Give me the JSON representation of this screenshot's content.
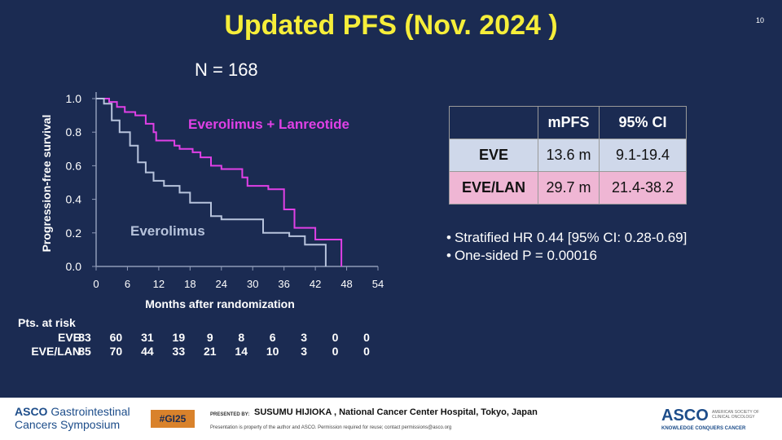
{
  "slide": {
    "title": "Updated PFS (Nov. 2024 )",
    "number": "10",
    "n_label": "N = 168"
  },
  "chart_data": {
    "type": "line",
    "subtype": "kaplan-meier",
    "xlabel": "Months after randomization",
    "ylabel": "Progression-free survival",
    "xlim": [
      0,
      54
    ],
    "ylim": [
      0,
      1.0
    ],
    "xticks": [
      "0",
      "6",
      "12",
      "18",
      "24",
      "30",
      "36",
      "42",
      "48",
      "54"
    ],
    "yticks": [
      "0.0",
      "0.2",
      "0.4",
      "0.6",
      "0.8",
      "1.0"
    ],
    "series": [
      {
        "name": "Everolimus + Lanreotide",
        "color": "#e040e6",
        "points": [
          [
            0,
            1.0
          ],
          [
            2.5,
            1.0
          ],
          [
            2.5,
            0.98
          ],
          [
            4,
            0.98
          ],
          [
            4,
            0.95
          ],
          [
            5.5,
            0.95
          ],
          [
            5.5,
            0.92
          ],
          [
            7.5,
            0.92
          ],
          [
            7.5,
            0.9
          ],
          [
            9.5,
            0.9
          ],
          [
            9.5,
            0.85
          ],
          [
            11,
            0.85
          ],
          [
            11,
            0.8
          ],
          [
            11.5,
            0.8
          ],
          [
            11.5,
            0.75
          ],
          [
            15,
            0.75
          ],
          [
            15,
            0.72
          ],
          [
            16,
            0.72
          ],
          [
            16,
            0.7
          ],
          [
            18.5,
            0.7
          ],
          [
            18.5,
            0.68
          ],
          [
            20,
            0.68
          ],
          [
            20,
            0.65
          ],
          [
            22,
            0.65
          ],
          [
            22,
            0.6
          ],
          [
            24,
            0.6
          ],
          [
            24,
            0.58
          ],
          [
            28,
            0.58
          ],
          [
            28,
            0.53
          ],
          [
            29,
            0.53
          ],
          [
            29,
            0.48
          ],
          [
            33,
            0.48
          ],
          [
            33,
            0.46
          ],
          [
            36,
            0.46
          ],
          [
            36,
            0.34
          ],
          [
            38,
            0.34
          ],
          [
            38,
            0.23
          ],
          [
            42,
            0.23
          ],
          [
            42,
            0.16
          ],
          [
            47,
            0.16
          ],
          [
            47,
            0.0
          ]
        ]
      },
      {
        "name": "Everolimus",
        "color": "#b7c3dc",
        "points": [
          [
            0,
            1.0
          ],
          [
            1.5,
            1.0
          ],
          [
            1.5,
            0.97
          ],
          [
            3,
            0.97
          ],
          [
            3,
            0.87
          ],
          [
            4.5,
            0.87
          ],
          [
            4.5,
            0.8
          ],
          [
            6.5,
            0.8
          ],
          [
            6.5,
            0.72
          ],
          [
            8,
            0.72
          ],
          [
            8,
            0.62
          ],
          [
            9.5,
            0.62
          ],
          [
            9.5,
            0.56
          ],
          [
            11,
            0.56
          ],
          [
            11,
            0.51
          ],
          [
            13,
            0.51
          ],
          [
            13,
            0.48
          ],
          [
            16,
            0.48
          ],
          [
            16,
            0.44
          ],
          [
            18,
            0.44
          ],
          [
            18,
            0.38
          ],
          [
            22,
            0.38
          ],
          [
            22,
            0.3
          ],
          [
            24,
            0.3
          ],
          [
            24,
            0.28
          ],
          [
            32,
            0.28
          ],
          [
            32,
            0.2
          ],
          [
            37,
            0.2
          ],
          [
            37,
            0.18
          ],
          [
            40,
            0.18
          ],
          [
            40,
            0.13
          ],
          [
            44,
            0.13
          ],
          [
            44,
            0.0
          ]
        ]
      }
    ],
    "annotations": {
      "eve_lan_label": "Everolimus + Lanreotide",
      "eve_label": "Everolimus"
    }
  },
  "risk_table": {
    "title": "Pts. at risk",
    "rows": [
      {
        "label": "EVE",
        "values": [
          "83",
          "60",
          "31",
          "19",
          "9",
          "8",
          "6",
          "3",
          "0",
          "0"
        ]
      },
      {
        "label": "EVE/LAN",
        "values": [
          "85",
          "70",
          "44",
          "33",
          "21",
          "14",
          "10",
          "3",
          "0",
          "0"
        ]
      }
    ]
  },
  "mpfs_table": {
    "headers": [
      "",
      "mPFS",
      "95% CI"
    ],
    "rows": [
      {
        "label": "EVE",
        "mpfs": "13.6 m",
        "ci": "9.1-19.4"
      },
      {
        "label": "EVE/LAN",
        "mpfs": "29.7 m",
        "ci": "21.4-38.2"
      }
    ]
  },
  "bullets": [
    "Stratified HR 0.44 [95% CI: 0.28-0.69]",
    "One-sided P = 0.00016"
  ],
  "footer": {
    "logo_line1_brand": "ASCO",
    "logo_line1_rest": " Gastrointestinal",
    "logo_line2": "Cancers Symposium",
    "hashtag": "#GI25",
    "presented_by": "PRESENTED BY:",
    "presenter": "SUSUMU HIJIOKA , National Cancer Center Hospital, Tokyo, Japan",
    "note": "Presentation is property of the author and ASCO. Permission required for reuse; contact permissions@asco.org",
    "asco_big": "ASCO",
    "asco_small": "AMERICAN SOCIETY OF CLINICAL ONCOLOGY",
    "asco_tagline": "KNOWLEDGE CONQUERS CANCER"
  }
}
